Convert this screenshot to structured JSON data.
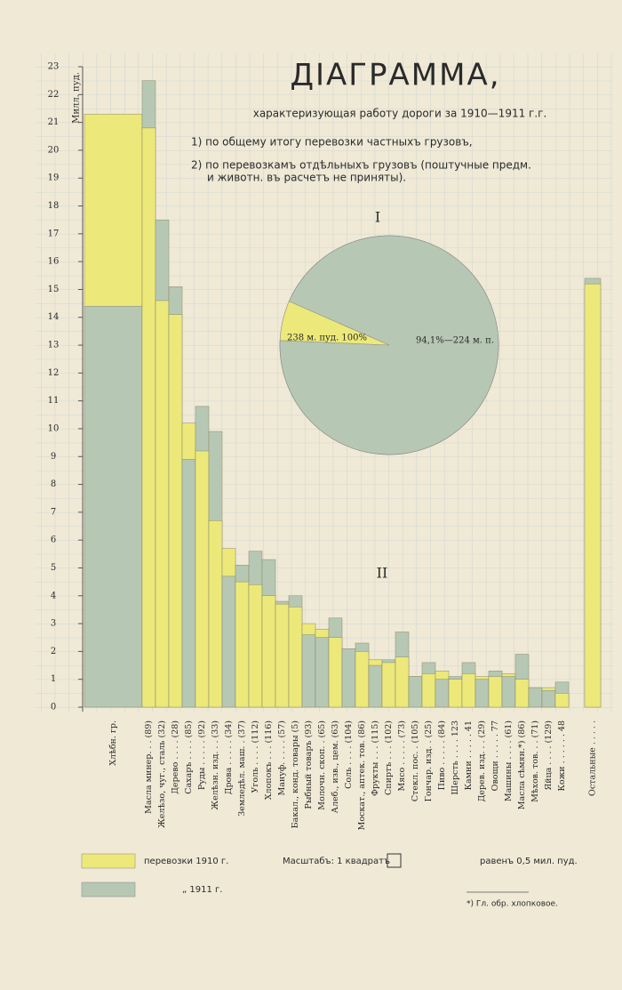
{
  "chart_data": [
    {
      "type": "bar",
      "title": "ДIАГРАММА,",
      "subtitle": "характеризующая работу дороги за 1910—1911 г.г.",
      "notes": [
        "1) по общему итогу перевозки частныхъ грузовъ,",
        "2) по перевозкамъ отдѣльныхъ грузовъ (поштучные предм.",
        "и животн. въ расчетъ не приняты)."
      ],
      "section_label": "II",
      "y_label": "Милл. пуд.",
      "categories": [
        "Хлѣбн. гр.",
        "Масла минер. . . (89)",
        "Желѣзо, чуг., сталь (32)",
        "Дерево . . . . (28)",
        "Сахаръ . . . . (85)",
        "Руды . . . . . (92)",
        "Желѣзн. изд. . . (33)",
        "Дрова . . . . . (34)",
        "Земледѣл. маш. . (37)",
        "Уголь . . . . (112)",
        "Хлопокъ . . . (116)",
        "Мануф. . . . . (57)",
        "Бакал., конд. товары (5)",
        "Рыбный товаръ (93)",
        "Молочн. скоп. . (65)",
        "Алеб., изв., цем. (63)",
        "Соль . . . . (104)",
        "Москат., аптек. тов. (86)",
        "Фрукты . . . (115)",
        "Спиртъ . . . (102)",
        "Мясо . . . . . (73)",
        "Стекл. пос. . (105)",
        "Гончар. изд. . (25)",
        "Пиво . . . . . (84)",
        "Шерсть . . . . 123",
        "Камни . . . . . 41",
        "Дерев. изд. . . (29)",
        "Овощи . . . . . 77",
        "Машины . . . . (61)",
        "Масла сѣмян.*) (86)",
        "Мѣхов. тов. . . (71)",
        "Яйца . . . . (129)",
        "Кожи . . . . . . 48",
        "Остальные . . . . ."
      ],
      "series": [
        {
          "name": "перевозки 1910 г.",
          "color": "#ece97a",
          "values": [
            21.3,
            20.8,
            14.6,
            14.1,
            10.2,
            9.2,
            6.7,
            5.7,
            4.5,
            4.4,
            4.0,
            3.7,
            3.6,
            3.0,
            2.8,
            2.5,
            2.1,
            2.0,
            1.7,
            1.6,
            1.8,
            1.1,
            1.2,
            1.3,
            1.0,
            1.2,
            1.1,
            1.1,
            1.2,
            1.0,
            0.7,
            0.7,
            0.5,
            15.2
          ]
        },
        {
          "name": "„ 1911 г.",
          "color": "#b6c8b3",
          "values": [
            14.4,
            22.5,
            17.5,
            15.1,
            8.9,
            10.8,
            9.9,
            4.7,
            5.1,
            5.6,
            5.3,
            3.8,
            4.0,
            2.6,
            2.5,
            3.2,
            2.1,
            2.3,
            1.5,
            1.7,
            2.7,
            1.1,
            1.6,
            1.0,
            1.1,
            1.6,
            1.0,
            1.3,
            1.1,
            1.9,
            0.7,
            0.6,
            0.9,
            15.4
          ]
        }
      ],
      "ylim": [
        0,
        23
      ],
      "yticks": [
        0,
        1,
        2,
        3,
        4,
        5,
        6,
        7,
        8,
        9,
        10,
        11,
        12,
        13,
        14,
        15,
        16,
        17,
        18,
        19,
        20,
        21,
        22,
        23
      ],
      "scale_note": [
        "Масштабъ: 1 квадратъ",
        "равенъ 0,5 мил. пуд."
      ],
      "footnote": "*) Гл. обр. хлопковое."
    },
    {
      "type": "pie",
      "section_label": "I",
      "categories": [
        "1910",
        "1911"
      ],
      "values": [
        238,
        224
      ],
      "value_labels": [
        "238 м. пуд. 100%",
        "94,1%—224 м. п."
      ],
      "colors": [
        "#ece97a",
        "#b6c8b3"
      ]
    }
  ]
}
